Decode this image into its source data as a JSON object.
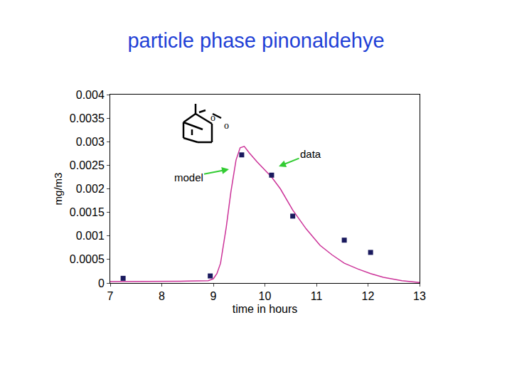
{
  "chart_data": {
    "type": "scatter",
    "title": "particle phase pinonaldehye",
    "x_label": "time in hours",
    "y_label": "mg/m3",
    "xlim": [
      7,
      13
    ],
    "xticks": [
      7,
      8,
      9,
      10,
      11,
      12,
      13
    ],
    "ylim": [
      0,
      0.004
    ],
    "yticks": [
      0,
      0.0005,
      0.001,
      0.0015,
      0.002,
      0.0025,
      0.003,
      0.0035,
      0.004
    ],
    "grid": false,
    "annotations": [
      "o",
      "o"
    ],
    "series": [
      {
        "name": "model",
        "type": "line",
        "color": "#cc3399",
        "line_style": "solid",
        "x": [
          7,
          7.5,
          8,
          8.5,
          8.9,
          9.0,
          9.07,
          9.14,
          9.25,
          9.34,
          9.44,
          9.52,
          9.6,
          9.7,
          9.85,
          10.0,
          10.13,
          10.3,
          10.54,
          10.8,
          11.07,
          11.3,
          11.54,
          11.8,
          12.05,
          12.3,
          12.66,
          13
        ],
        "values": [
          3e-05,
          3e-05,
          3e-05,
          4e-05,
          5e-05,
          9e-05,
          0.0002,
          0.00042,
          0.00118,
          0.00193,
          0.00261,
          0.00287,
          0.0029,
          0.00276,
          0.00257,
          0.00239,
          0.00225,
          0.002,
          0.00155,
          0.00115,
          0.0008,
          0.0006,
          0.00042,
          0.0003,
          0.0002,
          0.00012,
          5e-05,
          1e-05
        ]
      },
      {
        "name": "data",
        "type": "scatter",
        "color": "#1a1a5e",
        "marker": "square",
        "x": [
          7.25,
          8.94,
          9.55,
          10.13,
          10.54,
          11.54,
          12.05
        ],
        "values": [
          0.0001,
          0.00015,
          0.00272,
          0.00229,
          0.00142,
          0.00091,
          0.00065
        ]
      }
    ]
  }
}
